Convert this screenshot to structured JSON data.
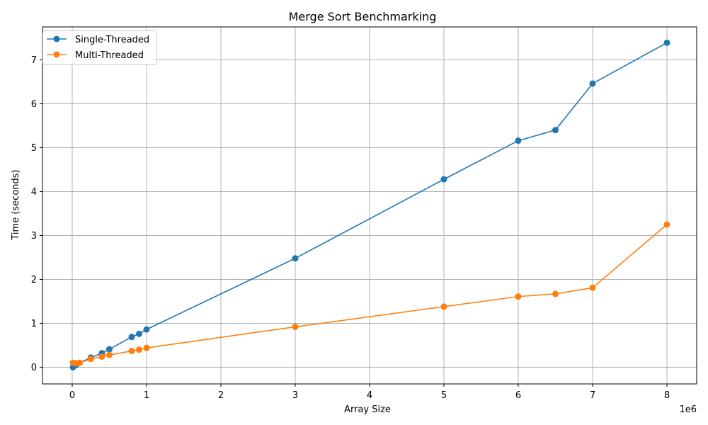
{
  "chart_data": {
    "type": "line",
    "title": "Merge Sort Benchmarking",
    "xlabel": "Array Size",
    "ylabel": "Time (seconds)",
    "x_offset_label": "1e6",
    "xlim": [
      -400000,
      8400000
    ],
    "ylim": [
      -0.38,
      7.75
    ],
    "x_ticks": [
      0,
      1000000,
      2000000,
      3000000,
      4000000,
      5000000,
      6000000,
      7000000,
      8000000
    ],
    "x_tick_labels": [
      "0",
      "1",
      "2",
      "3",
      "4",
      "5",
      "6",
      "7",
      "8"
    ],
    "y_ticks": [
      0,
      1,
      2,
      3,
      4,
      5,
      6,
      7
    ],
    "y_tick_labels": [
      "0",
      "1",
      "2",
      "3",
      "4",
      "5",
      "6",
      "7"
    ],
    "grid": true,
    "legend_position": "top-left",
    "series": [
      {
        "name": "Single-Threaded",
        "color": "#1f77b4",
        "points": [
          [
            10000,
            0.0
          ],
          [
            50000,
            0.05
          ],
          [
            100000,
            0.1
          ],
          [
            250000,
            0.22
          ],
          [
            400000,
            0.32
          ],
          [
            500000,
            0.41
          ],
          [
            800000,
            0.69
          ],
          [
            900000,
            0.76
          ],
          [
            1000000,
            0.86
          ],
          [
            3000000,
            2.48
          ],
          [
            5000000,
            4.28
          ],
          [
            6000000,
            5.16
          ],
          [
            6500000,
            5.4
          ],
          [
            7000000,
            6.46
          ],
          [
            8000000,
            7.39
          ]
        ]
      },
      {
        "name": "Multi-Threaded",
        "color": "#ff7f0e",
        "points": [
          [
            10000,
            0.1
          ],
          [
            50000,
            0.09
          ],
          [
            100000,
            0.1
          ],
          [
            250000,
            0.19
          ],
          [
            400000,
            0.24
          ],
          [
            500000,
            0.28
          ],
          [
            800000,
            0.37
          ],
          [
            900000,
            0.4
          ],
          [
            1000000,
            0.44
          ],
          [
            3000000,
            0.92
          ],
          [
            5000000,
            1.38
          ],
          [
            6000000,
            1.61
          ],
          [
            6500000,
            1.67
          ],
          [
            7000000,
            1.81
          ],
          [
            8000000,
            3.25
          ]
        ]
      }
    ]
  }
}
